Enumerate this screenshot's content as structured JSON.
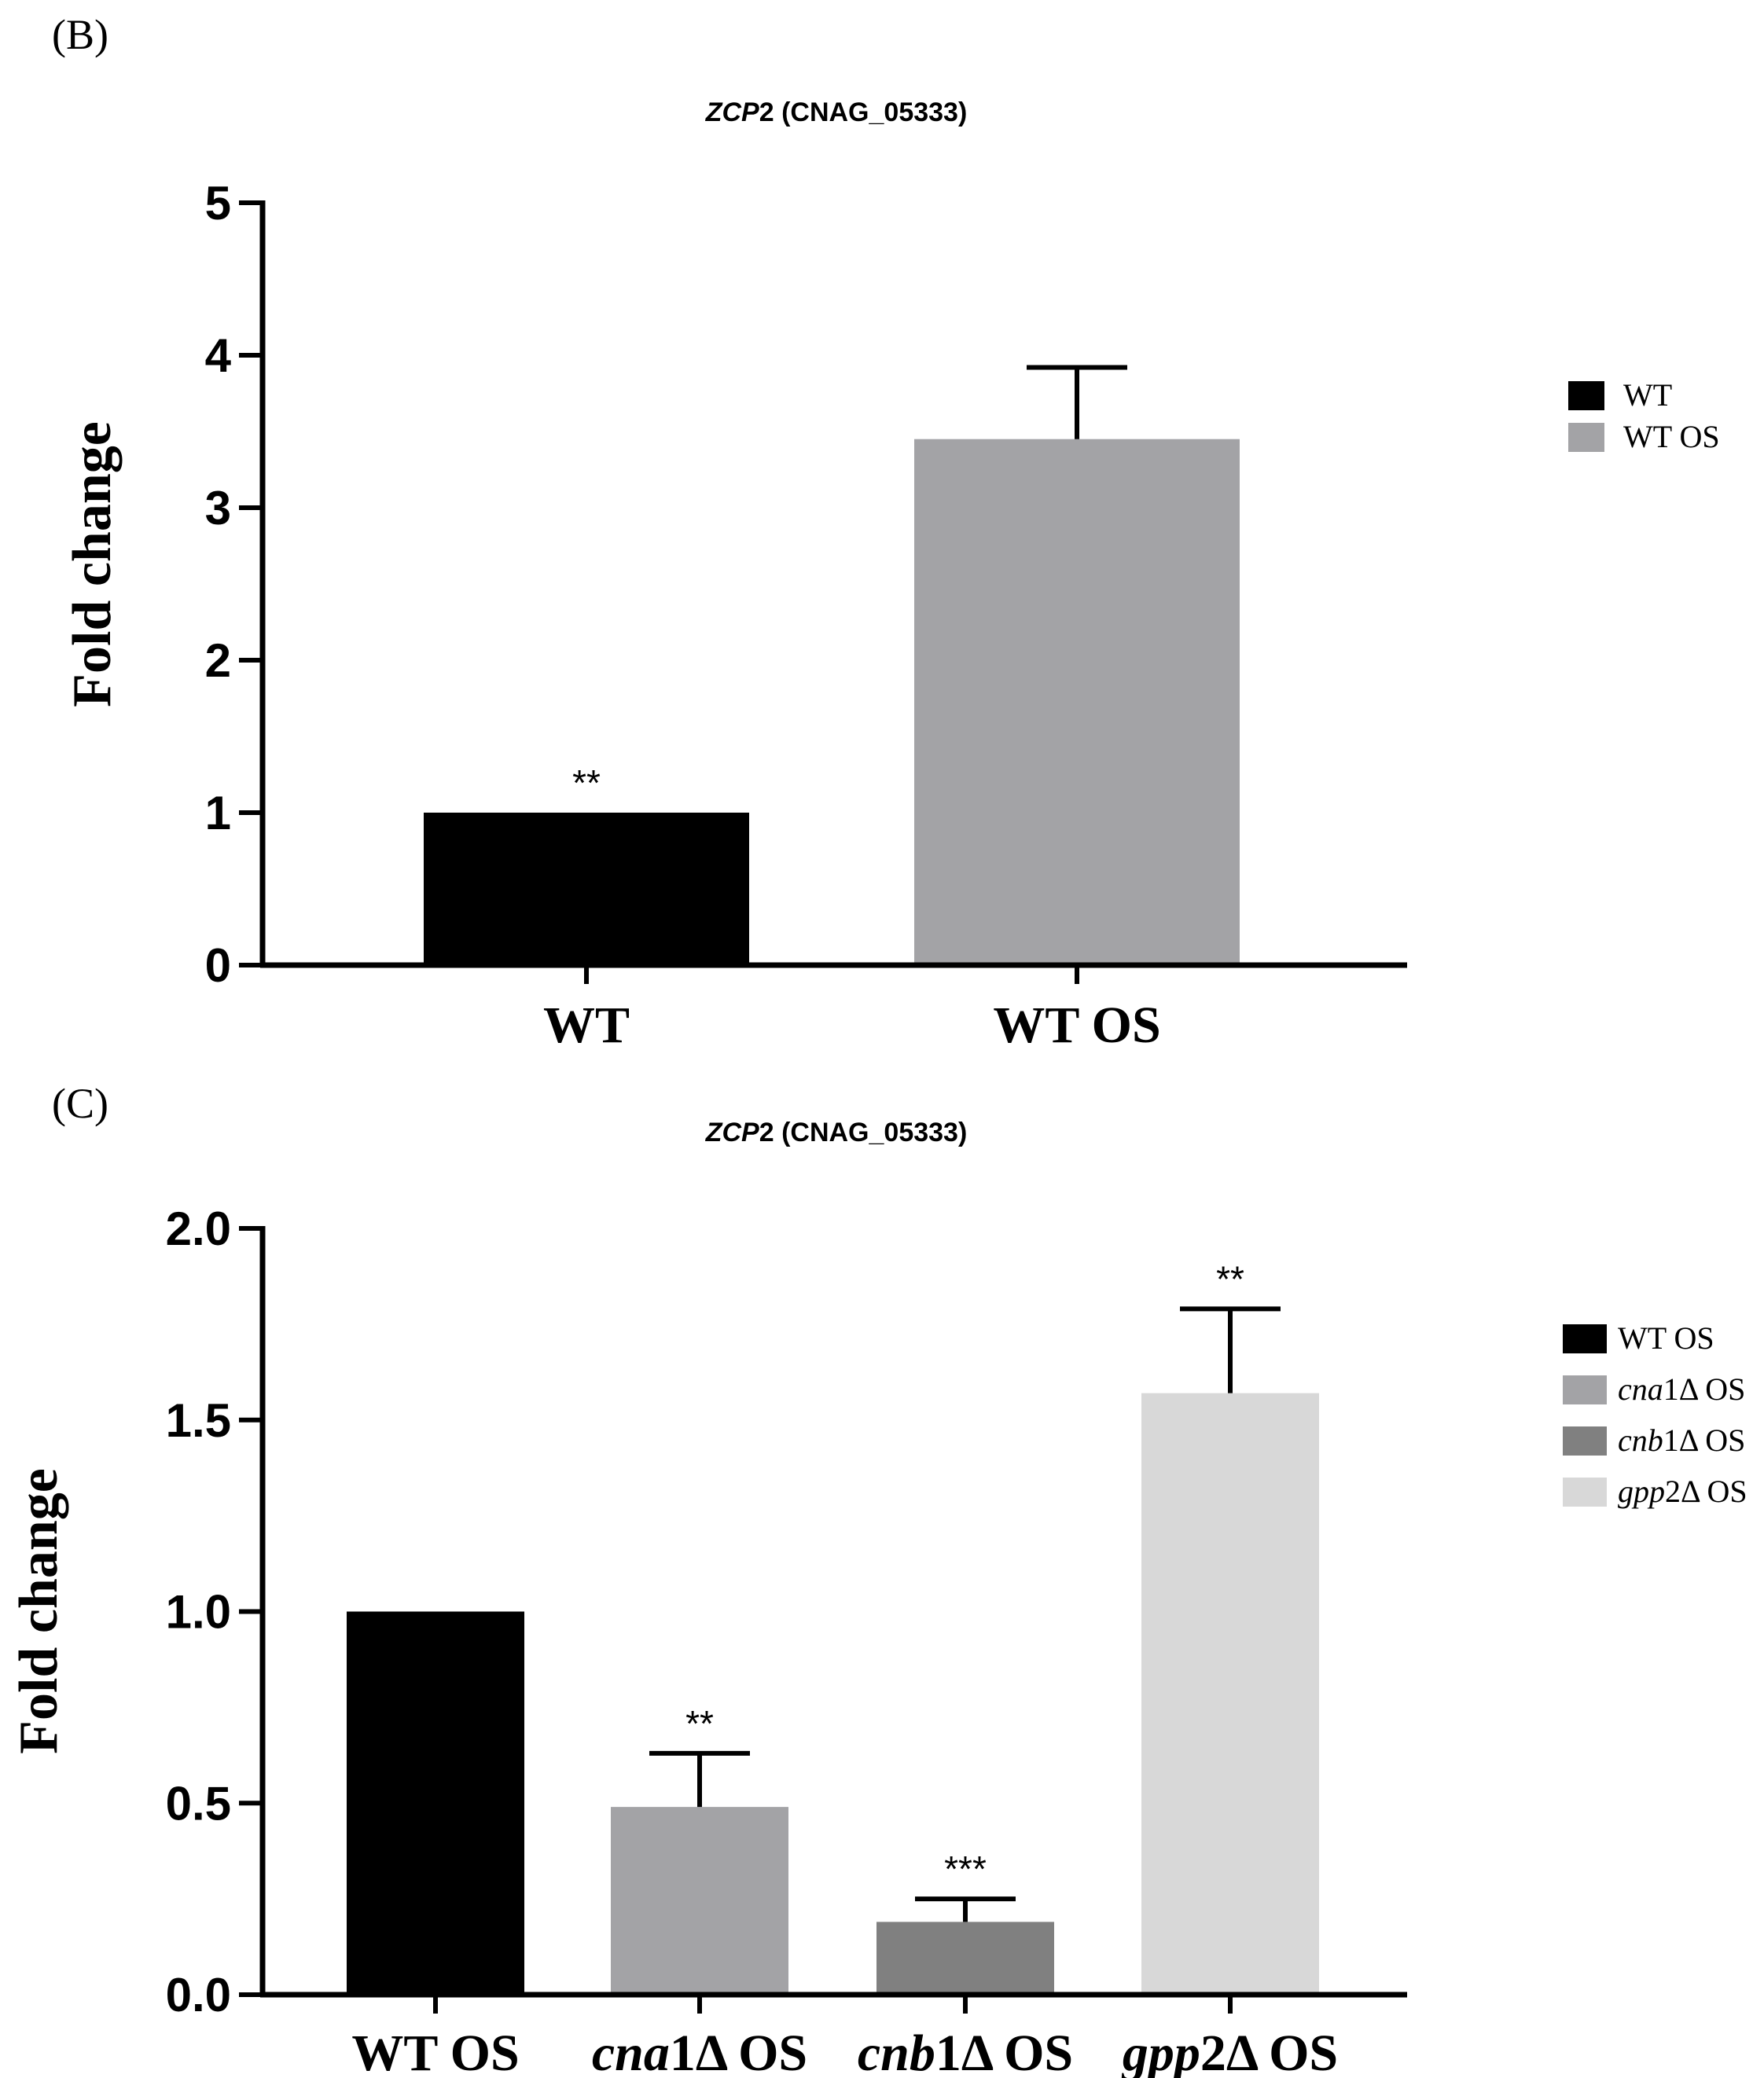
{
  "chart_data": [
    {
      "type": "bar",
      "panel_label": "(B)",
      "title": {
        "gene": "ZCP",
        "gene_num": "2",
        "id": " (CNAG_05333)"
      },
      "ylabel": "Fold change",
      "xlabel": "",
      "ylim": [
        0,
        5
      ],
      "yticks": [
        "0",
        "1",
        "2",
        "3",
        "4",
        "5"
      ],
      "categories": [
        {
          "name": "WT",
          "display": [
            {
              "t": "WT",
              "i": false
            }
          ],
          "legend": [
            {
              "t": "WT",
              "i": false
            }
          ]
        },
        {
          "name": "WT OS",
          "display": [
            {
              "t": "WT OS",
              "i": false
            }
          ],
          "legend": [
            {
              "t": "WT OS",
              "i": false
            }
          ]
        }
      ],
      "values": [
        1.0,
        3.45
      ],
      "errors": [
        0,
        0.47
      ],
      "significance": [
        "**",
        ""
      ],
      "colors": [
        "#000000",
        "#a3a3a6"
      ],
      "legend_position": "right"
    },
    {
      "type": "bar",
      "panel_label": "(C)",
      "title": {
        "gene": "ZCP",
        "gene_num": "2",
        "id": " (CNAG_05333)"
      },
      "ylabel": "Fold change",
      "xlabel": "",
      "ylim": [
        0,
        2.0
      ],
      "yticks": [
        "0.0",
        "0.5",
        "1.0",
        "1.5",
        "2.0"
      ],
      "categories": [
        {
          "name": "WT OS",
          "display": [
            {
              "t": "WT OS",
              "i": false
            }
          ],
          "legend": [
            {
              "t": "WT OS",
              "i": false
            }
          ]
        },
        {
          "name": "cna1Δ OS",
          "display": [
            {
              "t": "cna",
              "i": true
            },
            {
              "t": "1Δ OS",
              "i": false
            }
          ],
          "legend": [
            {
              "t": "cna",
              "i": true
            },
            {
              "t": "1Δ OS",
              "i": false
            }
          ]
        },
        {
          "name": "cnb1Δ OS",
          "display": [
            {
              "t": "cnb",
              "i": true
            },
            {
              "t": "1Δ OS",
              "i": false
            }
          ],
          "legend": [
            {
              "t": "cnb",
              "i": true
            },
            {
              "t": "1Δ OS",
              "i": false
            }
          ]
        },
        {
          "name": "gpp2Δ OS",
          "display": [
            {
              "t": "gpp",
              "i": true
            },
            {
              "t": "2Δ OS",
              "i": false
            }
          ],
          "legend": [
            {
              "t": "gpp",
              "i": true
            },
            {
              "t": "2Δ OS",
              "i": false
            }
          ]
        }
      ],
      "values": [
        1.0,
        0.49,
        0.19,
        1.57
      ],
      "errors": [
        0,
        0.14,
        0.06,
        0.22
      ],
      "significance": [
        "",
        "**",
        "***",
        "**"
      ],
      "colors": [
        "#000000",
        "#a3a3a6",
        "#808080",
        "#d8d8d8"
      ],
      "legend_position": "right"
    }
  ]
}
